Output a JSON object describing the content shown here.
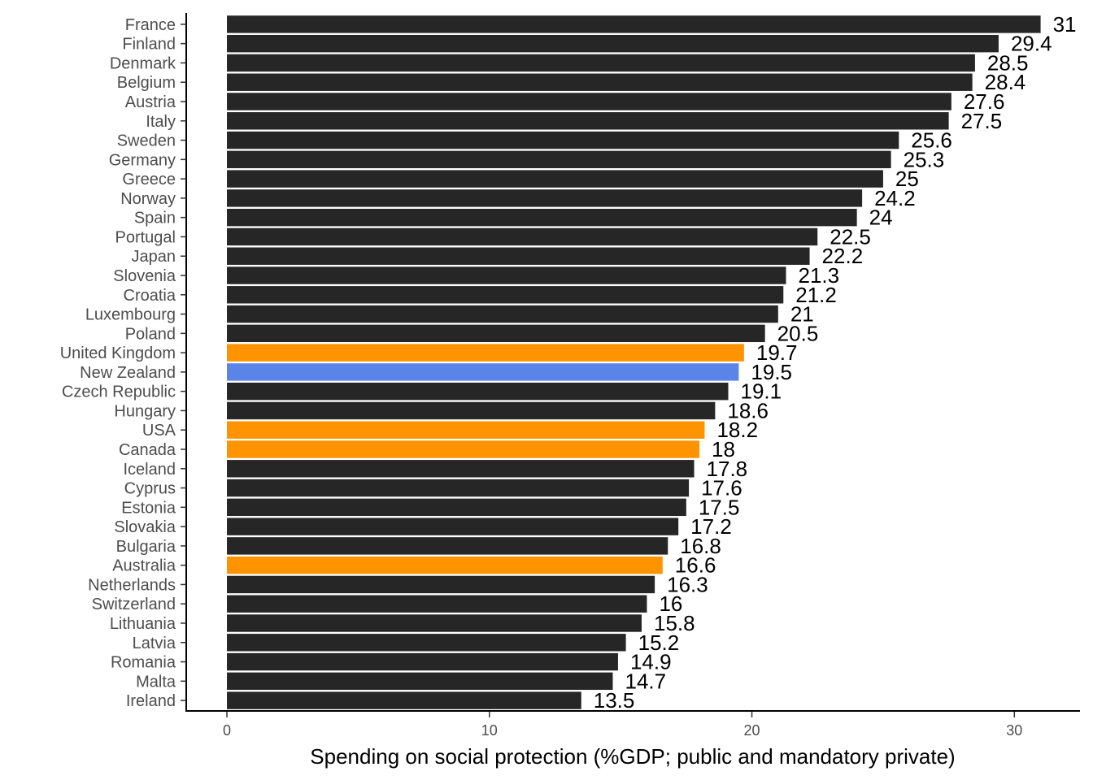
{
  "chart_data": {
    "type": "bar",
    "orientation": "horizontal",
    "xlabel": "Spending on social protection (%GDP; public and mandatory private)",
    "ylabel": "",
    "xlim": [
      -1.55,
      32.5
    ],
    "xticks": [
      0,
      10,
      20,
      30
    ],
    "grid": false,
    "colors": {
      "default": "#262626",
      "highlight": "#ff9300",
      "focus": "#5a84e8"
    },
    "categories": [
      "France",
      "Finland",
      "Denmark",
      "Belgium",
      "Austria",
      "Italy",
      "Sweden",
      "Germany",
      "Greece",
      "Norway",
      "Spain",
      "Portugal",
      "Japan",
      "Slovenia",
      "Croatia",
      "Luxembourg",
      "Poland",
      "United Kingdom",
      "New Zealand",
      "Czech Republic",
      "Hungary",
      "USA",
      "Canada",
      "Iceland",
      "Cyprus",
      "Estonia",
      "Slovakia",
      "Bulgaria",
      "Australia",
      "Netherlands",
      "Switzerland",
      "Lithuania",
      "Latvia",
      "Romania",
      "Malta",
      "Ireland"
    ],
    "values": [
      31,
      29.4,
      28.5,
      28.4,
      27.6,
      27.5,
      25.6,
      25.3,
      25,
      24.2,
      24,
      22.5,
      22.2,
      21.3,
      21.2,
      21,
      20.5,
      19.7,
      19.5,
      19.1,
      18.6,
      18.2,
      18,
      17.8,
      17.6,
      17.5,
      17.2,
      16.8,
      16.6,
      16.3,
      16,
      15.8,
      15.2,
      14.9,
      14.7,
      13.5
    ],
    "value_labels": [
      "31",
      "29.4",
      "28.5",
      "28.4",
      "27.6",
      "27.5",
      "25.6",
      "25.3",
      "25",
      "24.2",
      "24",
      "22.5",
      "22.2",
      "21.3",
      "21.2",
      "21",
      "20.5",
      "19.7",
      "19.5",
      "19.1",
      "18.6",
      "18.2",
      "18",
      "17.8",
      "17.6",
      "17.5",
      "17.2",
      "16.8",
      "16.6",
      "16.3",
      "16",
      "15.8",
      "15.2",
      "14.9",
      "14.7",
      "13.5"
    ],
    "bar_color_groups": [
      "default",
      "default",
      "default",
      "default",
      "default",
      "default",
      "default",
      "default",
      "default",
      "default",
      "default",
      "default",
      "default",
      "default",
      "default",
      "default",
      "default",
      "highlight",
      "focus",
      "default",
      "default",
      "highlight",
      "highlight",
      "default",
      "default",
      "default",
      "default",
      "default",
      "highlight",
      "default",
      "default",
      "default",
      "default",
      "default",
      "default",
      "default"
    ]
  }
}
